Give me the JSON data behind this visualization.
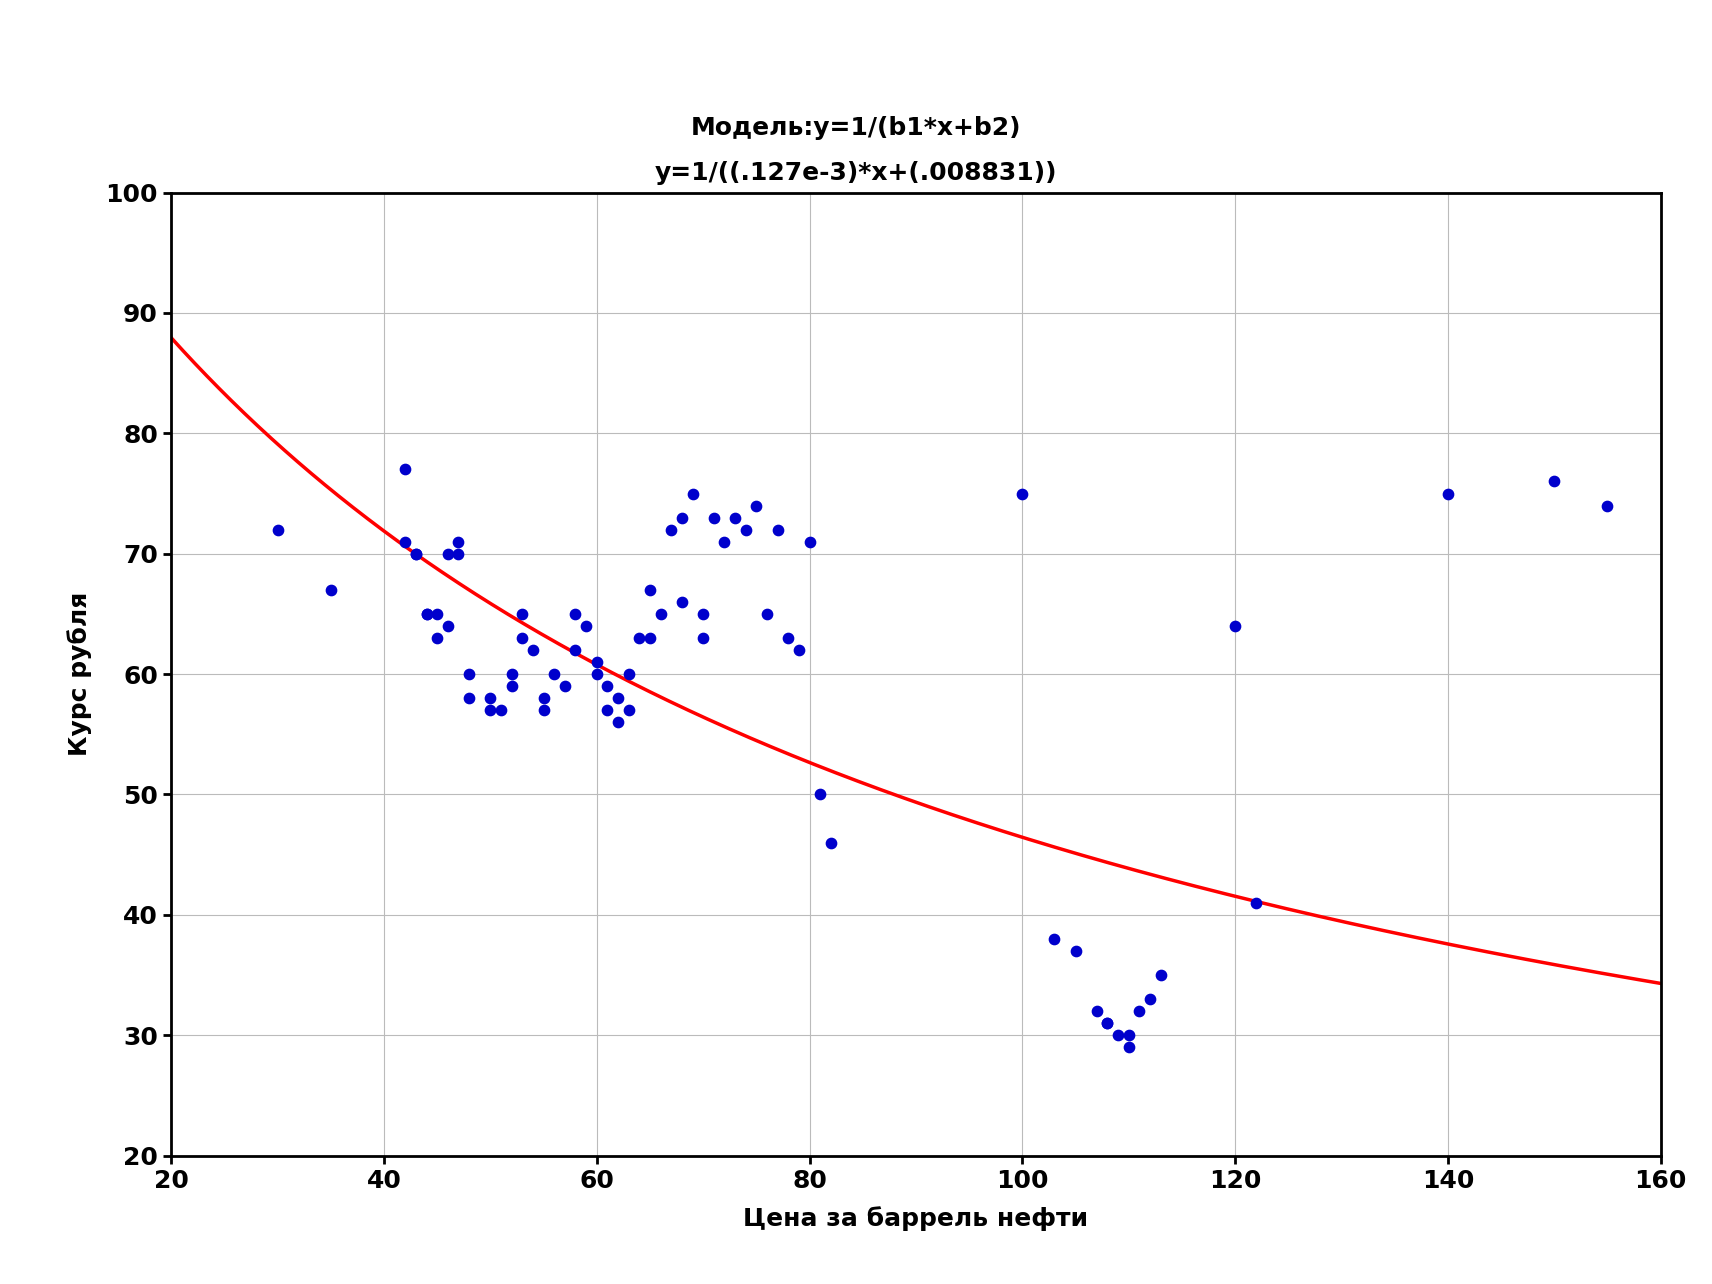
{
  "title_line1": "Модель:y=1/(b1*x+b2)",
  "title_line2": "y=1/((.127e-3)*x+(.008831))",
  "xlabel": "Цена за баррель нефти",
  "ylabel": "Курс рубля",
  "xlim": [
    20,
    160
  ],
  "ylim": [
    20,
    100
  ],
  "xticks": [
    20,
    40,
    60,
    80,
    100,
    120,
    140,
    160
  ],
  "yticks": [
    20,
    30,
    40,
    50,
    60,
    70,
    80,
    90,
    100
  ],
  "b1": 0.000127,
  "b2": 0.008831,
  "scatter_color": "#0000cc",
  "curve_color": "#ff0000",
  "curve_linewidth": 2.5,
  "marker_size": 55,
  "scatter_x": [
    30,
    35,
    42,
    42,
    43,
    43,
    44,
    44,
    45,
    45,
    46,
    46,
    47,
    47,
    48,
    48,
    50,
    50,
    51,
    52,
    52,
    53,
    53,
    54,
    55,
    55,
    56,
    57,
    58,
    58,
    59,
    60,
    60,
    61,
    61,
    62,
    62,
    63,
    63,
    64,
    65,
    65,
    66,
    67,
    68,
    68,
    69,
    70,
    70,
    71,
    72,
    73,
    74,
    75,
    76,
    77,
    78,
    79,
    80,
    81,
    82,
    100,
    103,
    105,
    107,
    108,
    108,
    109,
    110,
    110,
    111,
    112,
    113,
    120,
    122,
    140,
    150,
    155
  ],
  "scatter_y": [
    72,
    67,
    77,
    71,
    70,
    70,
    65,
    65,
    65,
    63,
    64,
    70,
    70,
    71,
    58,
    60,
    57,
    58,
    57,
    59,
    60,
    63,
    65,
    62,
    57,
    58,
    60,
    59,
    62,
    65,
    64,
    60,
    61,
    59,
    57,
    58,
    56,
    57,
    60,
    63,
    63,
    67,
    65,
    72,
    73,
    66,
    75,
    63,
    65,
    73,
    71,
    73,
    72,
    74,
    65,
    72,
    63,
    62,
    71,
    50,
    46,
    75,
    38,
    37,
    32,
    31,
    31,
    30,
    30,
    29,
    32,
    33,
    35,
    64,
    41,
    75,
    76,
    74
  ],
  "title_fontsize": 18,
  "label_fontsize": 18,
  "tick_fontsize": 18,
  "background_color": "#ffffff",
  "grid_color": "#bbbbbb",
  "grid_linewidth": 0.8,
  "spine_linewidth": 2.0
}
